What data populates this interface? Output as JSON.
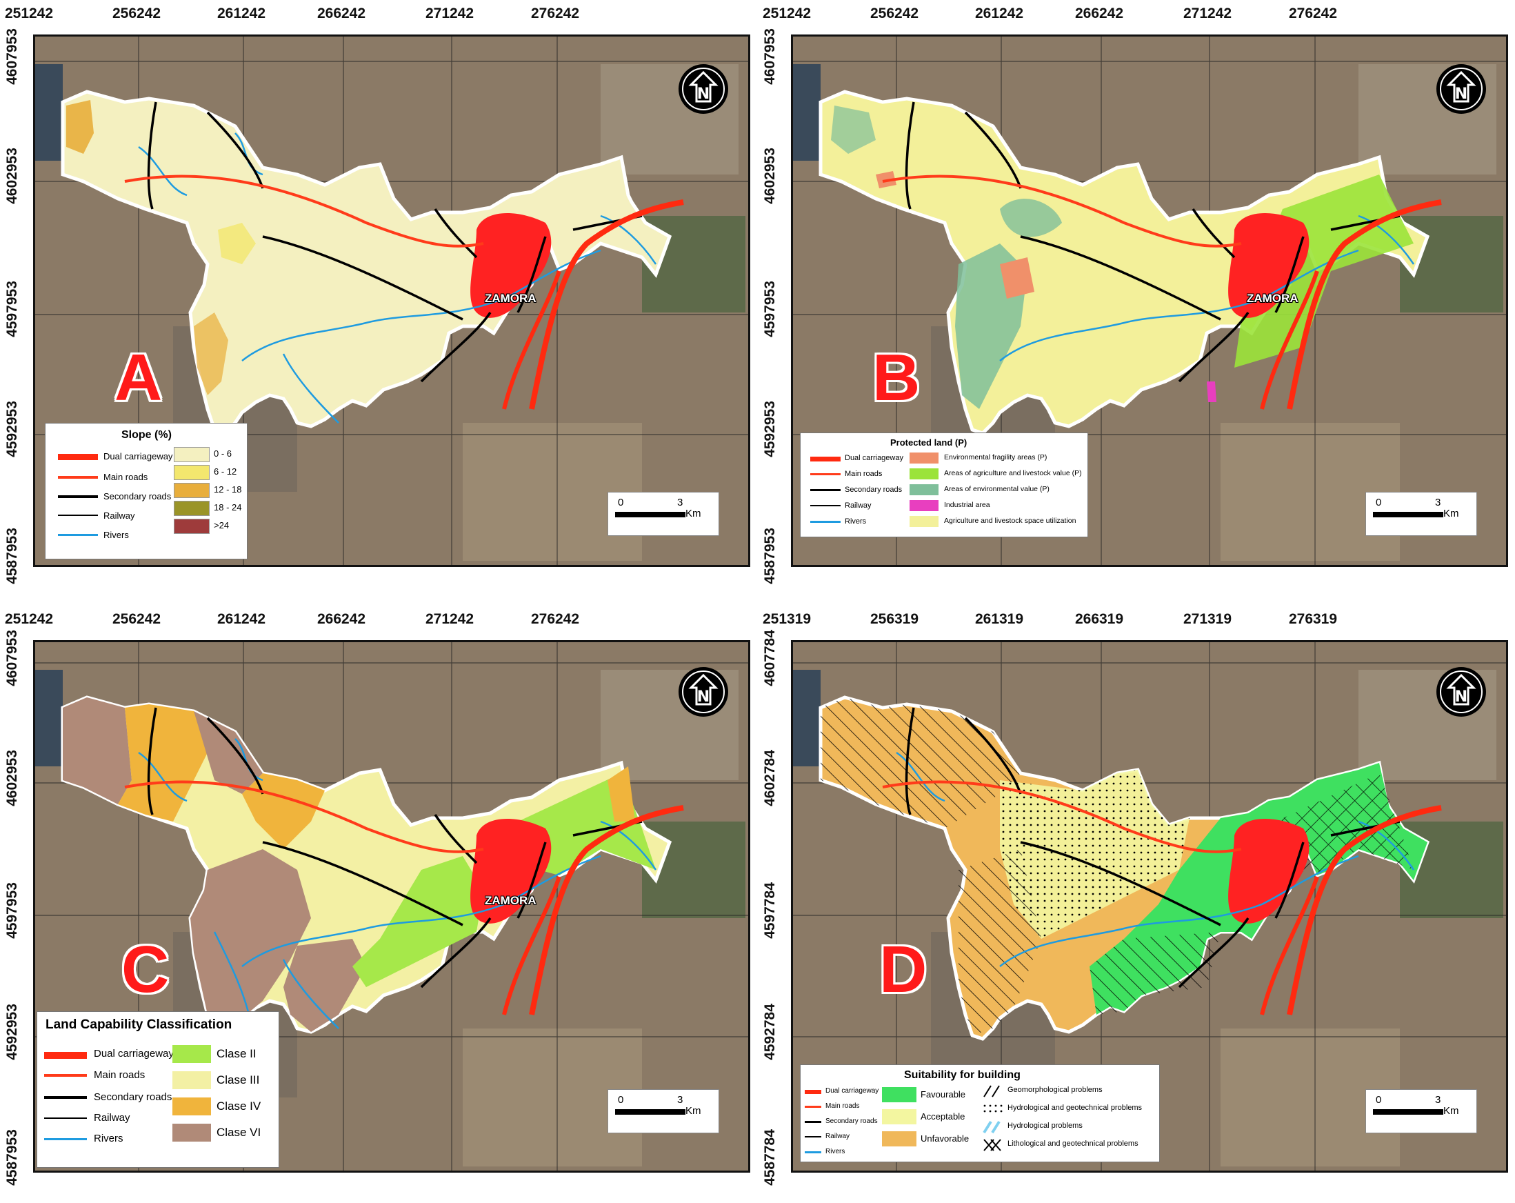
{
  "panels": [
    {
      "letter": "A",
      "x_ticks": [
        "251242",
        "256242",
        "261242",
        "266242",
        "271242",
        "276242"
      ],
      "y_ticks": [
        "4607953",
        "4602953",
        "4597953",
        "4592953",
        "4587953"
      ],
      "city_label": "ZAMORA",
      "scale": {
        "zero": "0",
        "three": "3",
        "unit": "Km"
      },
      "legend": {
        "title": "Slope (%)",
        "lines": [
          "Dual carriageway",
          "Main roads",
          "Secondary roads",
          "Railway",
          "Rivers"
        ],
        "classes": [
          {
            "label": "0 - 6",
            "color": "#f4f0c0"
          },
          {
            "label": "6 - 12",
            "color": "#f3e76e"
          },
          {
            "label": "12 - 18",
            "color": "#e8ae3c"
          },
          {
            "label": "18 - 24",
            "color": "#9a9428"
          },
          {
            "label": ">24",
            "color": "#9e3b3b"
          }
        ]
      }
    },
    {
      "letter": "B",
      "x_ticks": [
        "251242",
        "256242",
        "261242",
        "266242",
        "271242",
        "276242"
      ],
      "y_ticks": [
        "4607953",
        "4602953",
        "4597953",
        "4592953",
        "4587953"
      ],
      "city_label": "ZAMORA",
      "scale": {
        "zero": "0",
        "three": "3",
        "unit": "Km"
      },
      "legend": {
        "title": "Protected land (P)",
        "lines": [
          "Dual carriageway",
          "Main roads",
          "Secondary roads",
          "Railway",
          "Rivers"
        ],
        "classes": [
          {
            "label": "Environmental fragility areas (P)",
            "color": "#f0906a"
          },
          {
            "label": "Areas of agriculture and livestock value (P)",
            "color": "#9be33a"
          },
          {
            "label": "Areas of environmental value (P)",
            "color": "#7fbf9a"
          },
          {
            "label": "Industrial area",
            "color": "#e83fbf"
          },
          {
            "label": "Agriculture  and livestock space utilization",
            "color": "#f3f09a"
          }
        ]
      }
    },
    {
      "letter": "C",
      "x_ticks": [
        "251242",
        "256242",
        "261242",
        "266242",
        "271242",
        "276242"
      ],
      "y_ticks": [
        "4607953",
        "4602953",
        "4597953",
        "4592953",
        "4587953"
      ],
      "city_label": "ZAMORA",
      "scale": {
        "zero": "0",
        "three": "3",
        "unit": "Km"
      },
      "legend": {
        "title": "Land Capability Classification",
        "lines": [
          "Dual carriageway",
          "Main roads",
          "Secondary roads",
          "Railway",
          "Rivers"
        ],
        "classes": [
          {
            "label": "Clase II",
            "color": "#a6e84a"
          },
          {
            "label": "Clase III",
            "color": "#f3f0a4"
          },
          {
            "label": "Clase IV",
            "color": "#f0b43c"
          },
          {
            "label": "Clase VI",
            "color": "#b08a78"
          }
        ]
      }
    },
    {
      "letter": "D",
      "x_ticks": [
        "251319",
        "256319",
        "261319",
        "266319",
        "271319",
        "276319"
      ],
      "y_ticks": [
        "4607784",
        "4602784",
        "4597784",
        "4592784",
        "4587784"
      ],
      "city_label": "",
      "scale": {
        "zero": "0",
        "three": "3",
        "unit": "Km"
      },
      "legend": {
        "title": "Suitability for building",
        "lines": [
          "Dual carriageway",
          "Main roads",
          "Secondary roads",
          "Railway",
          "Rivers"
        ],
        "classes": [
          {
            "label": "Favourable",
            "color": "#3fe060"
          },
          {
            "label": "Acceptable",
            "color": "#f3f6a0"
          },
          {
            "label": "Unfavorable",
            "color": "#f0b85a"
          }
        ],
        "problems": [
          "Geomorphological problems",
          "Hydrological and geotechnical problems",
          "Hydrological problems",
          "Lithological and geotechnical problems"
        ]
      }
    }
  ],
  "colors": {
    "dual_carriageway": "#ff2a10",
    "main_roads": "#ff3b1a",
    "secondary_roads": "#000000",
    "railway": "#000000",
    "rivers": "#1e9be0",
    "urban": "#ff2222",
    "letter": "#ff1a1a"
  },
  "icons": [
    "north-arrow-icon"
  ]
}
